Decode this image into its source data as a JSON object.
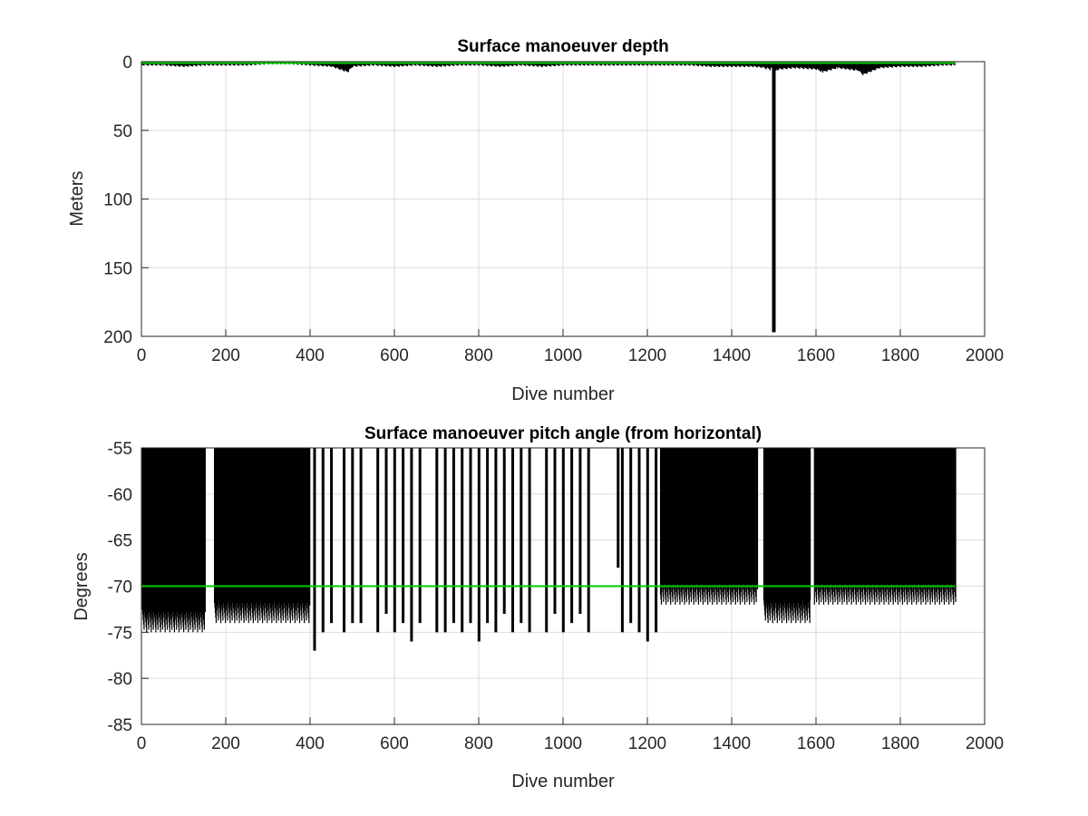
{
  "chart_data": [
    {
      "type": "bar",
      "title": "Surface manoeuver depth",
      "xlabel": "Dive number",
      "ylabel": "Meters",
      "xlim": [
        0,
        2000
      ],
      "ylim": [
        0,
        200
      ],
      "y_reversed": true,
      "grid": true,
      "xticks": [
        "0",
        "200",
        "400",
        "600",
        "800",
        "1000",
        "1200",
        "1400",
        "1600",
        "1800",
        "2000"
      ],
      "yticks": [
        "0",
        "50",
        "100",
        "150",
        "200"
      ],
      "bar_color": "#000000",
      "reference_line": {
        "value": 1,
        "color": "#00cc00"
      },
      "points": [
        [
          1,
          3
        ],
        [
          50,
          3
        ],
        [
          100,
          4
        ],
        [
          150,
          3
        ],
        [
          200,
          3
        ],
        [
          250,
          3
        ],
        [
          300,
          2
        ],
        [
          350,
          2
        ],
        [
          400,
          3
        ],
        [
          450,
          4
        ],
        [
          488,
          8
        ],
        [
          500,
          4
        ],
        [
          550,
          3
        ],
        [
          600,
          4
        ],
        [
          650,
          3
        ],
        [
          700,
          4
        ],
        [
          750,
          3
        ],
        [
          800,
          3
        ],
        [
          850,
          4
        ],
        [
          900,
          3
        ],
        [
          950,
          4
        ],
        [
          1000,
          3
        ],
        [
          1050,
          3
        ],
        [
          1100,
          3
        ],
        [
          1150,
          3
        ],
        [
          1200,
          3
        ],
        [
          1250,
          3
        ],
        [
          1300,
          3
        ],
        [
          1350,
          4
        ],
        [
          1400,
          4
        ],
        [
          1450,
          4
        ],
        [
          1480,
          5
        ],
        [
          1500,
          197
        ],
        [
          1510,
          6
        ],
        [
          1550,
          5
        ],
        [
          1600,
          6
        ],
        [
          1615,
          8
        ],
        [
          1650,
          5
        ],
        [
          1700,
          7
        ],
        [
          1710,
          10
        ],
        [
          1750,
          5
        ],
        [
          1800,
          4
        ],
        [
          1850,
          4
        ],
        [
          1900,
          3
        ],
        [
          1930,
          3
        ]
      ]
    },
    {
      "type": "bar",
      "title": "Surface manoeuver pitch angle (from horizontal)",
      "xlabel": "Dive number",
      "ylabel": "Degrees",
      "xlim": [
        0,
        2000
      ],
      "ylim": [
        -85,
        -55
      ],
      "grid": true,
      "xticks": [
        "0",
        "200",
        "400",
        "600",
        "800",
        "1000",
        "1200",
        "1400",
        "1600",
        "1800",
        "2000"
      ],
      "yticks": [
        "-55",
        "-60",
        "-65",
        "-70",
        "-75",
        "-80",
        "-85"
      ],
      "bar_color": "#000000",
      "reference_line": {
        "value": -70,
        "color": "#00cc00"
      },
      "dense_ranges": [
        {
          "x": [
            1,
            150
          ],
          "low": -75
        },
        {
          "x": [
            172,
            398
          ],
          "low": -74
        },
        {
          "x": [
            1230,
            1460
          ],
          "low": -72
        },
        {
          "x": [
            1475,
            1585
          ],
          "low": -74
        },
        {
          "x": [
            1595,
            1930
          ],
          "low": -72
        }
      ],
      "spikes": [
        [
          410,
          -77
        ],
        [
          430,
          -75
        ],
        [
          450,
          -74
        ],
        [
          480,
          -75
        ],
        [
          500,
          -74
        ],
        [
          520,
          -74
        ],
        [
          560,
          -75
        ],
        [
          580,
          -73
        ],
        [
          600,
          -75
        ],
        [
          620,
          -74
        ],
        [
          640,
          -76
        ],
        [
          660,
          -74
        ],
        [
          700,
          -75
        ],
        [
          720,
          -75
        ],
        [
          740,
          -74
        ],
        [
          760,
          -75
        ],
        [
          780,
          -74
        ],
        [
          800,
          -76
        ],
        [
          820,
          -74
        ],
        [
          840,
          -75
        ],
        [
          860,
          -73
        ],
        [
          880,
          -75
        ],
        [
          900,
          -74
        ],
        [
          920,
          -75
        ],
        [
          960,
          -75
        ],
        [
          980,
          -73
        ],
        [
          1000,
          -75
        ],
        [
          1020,
          -74
        ],
        [
          1040,
          -73
        ],
        [
          1060,
          -75
        ],
        [
          1130,
          -68
        ],
        [
          1140,
          -75
        ],
        [
          1160,
          -74
        ],
        [
          1180,
          -75
        ],
        [
          1200,
          -76
        ],
        [
          1220,
          -75
        ]
      ]
    }
  ]
}
